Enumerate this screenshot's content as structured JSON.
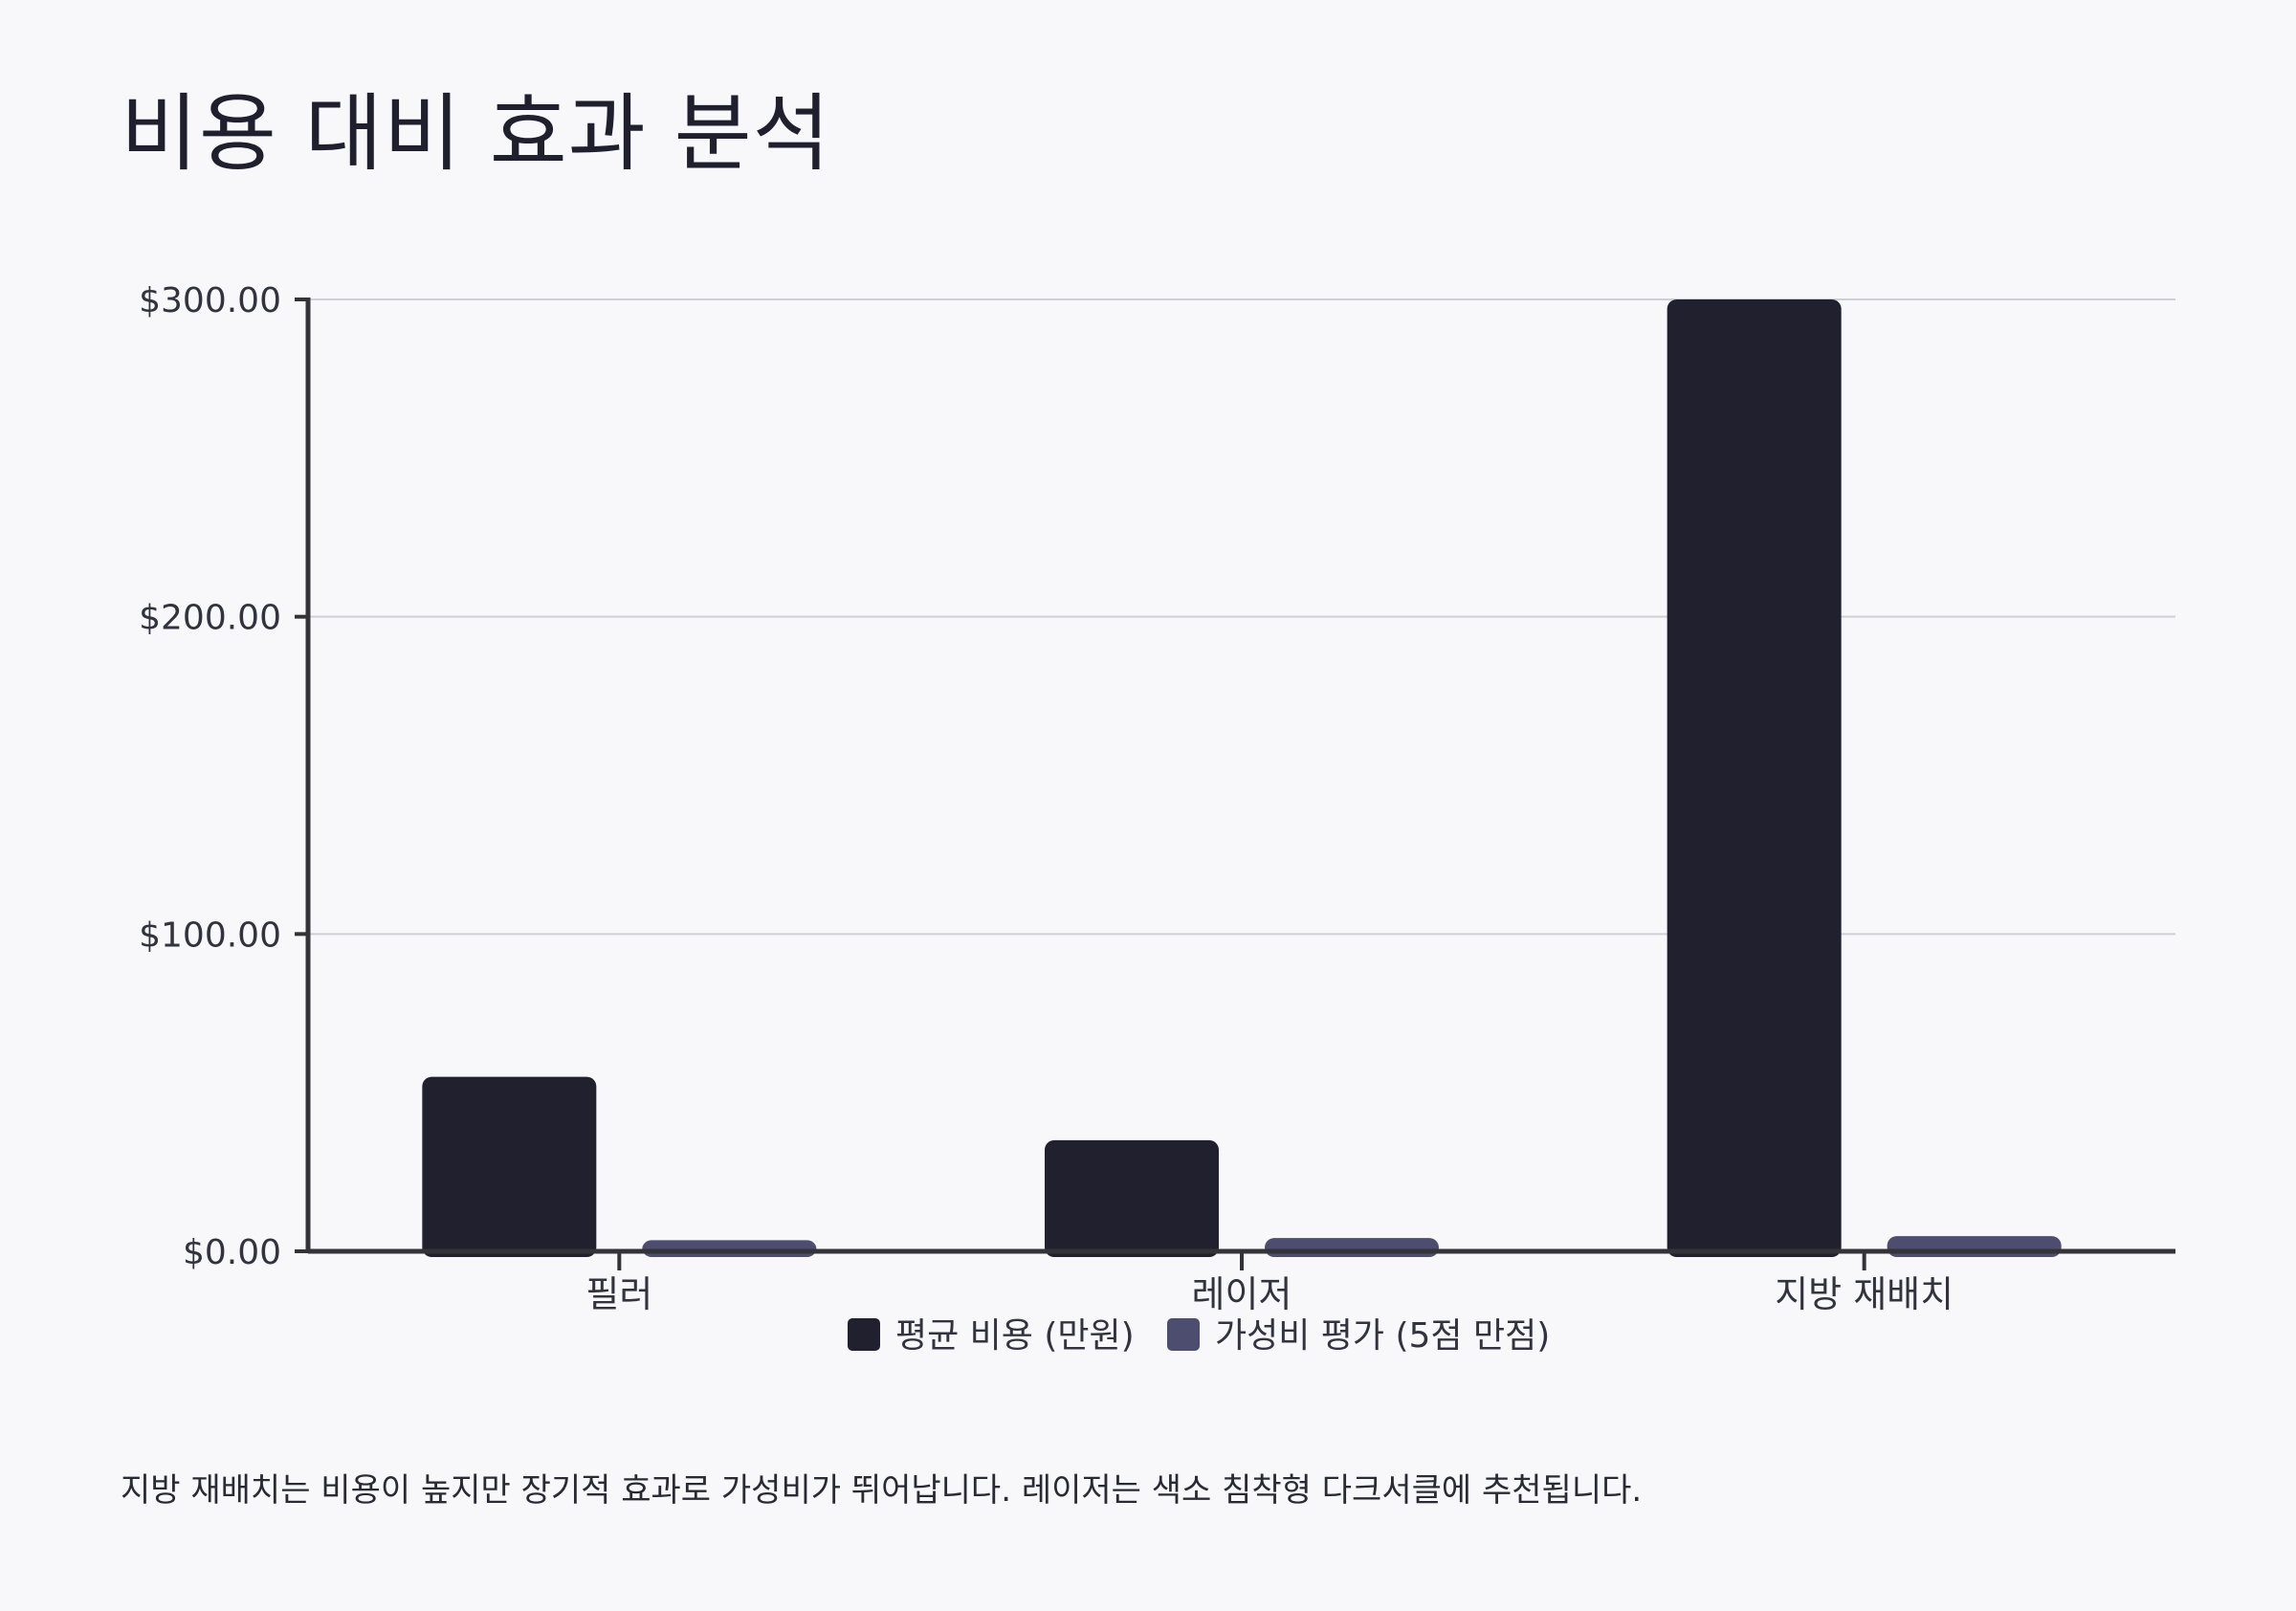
{
  "title": "비용 대비 효과 분석",
  "caption": "지방 재배치는 비용이 높지만 장기적 효과로 가성비가 뛰어납니다. 레이저는 색소 침착형 다크서클에 추천됩니다.",
  "colors": {
    "cost": "#21202e",
    "value": "#4d4d70",
    "grid": "#cfcfd6",
    "axis": "#333338",
    "text": "#333340"
  },
  "chart_data": {
    "type": "bar",
    "categories": [
      "필러",
      "레이저",
      "지방 재배치"
    ],
    "series": [
      {
        "name": "평균 비용 (만원)",
        "values": [
          55,
          35,
          300
        ]
      },
      {
        "name": "가성비 평가 (5점 만점)",
        "values": [
          3.5,
          4.2,
          4.8
        ]
      }
    ],
    "ylim": [
      0,
      300
    ],
    "yticks": [
      0,
      100,
      200,
      300
    ],
    "ytick_labels": [
      "$0.00",
      "$100.00",
      "$200.00",
      "$300.00"
    ],
    "grid": true,
    "legend": "bottom-center"
  }
}
